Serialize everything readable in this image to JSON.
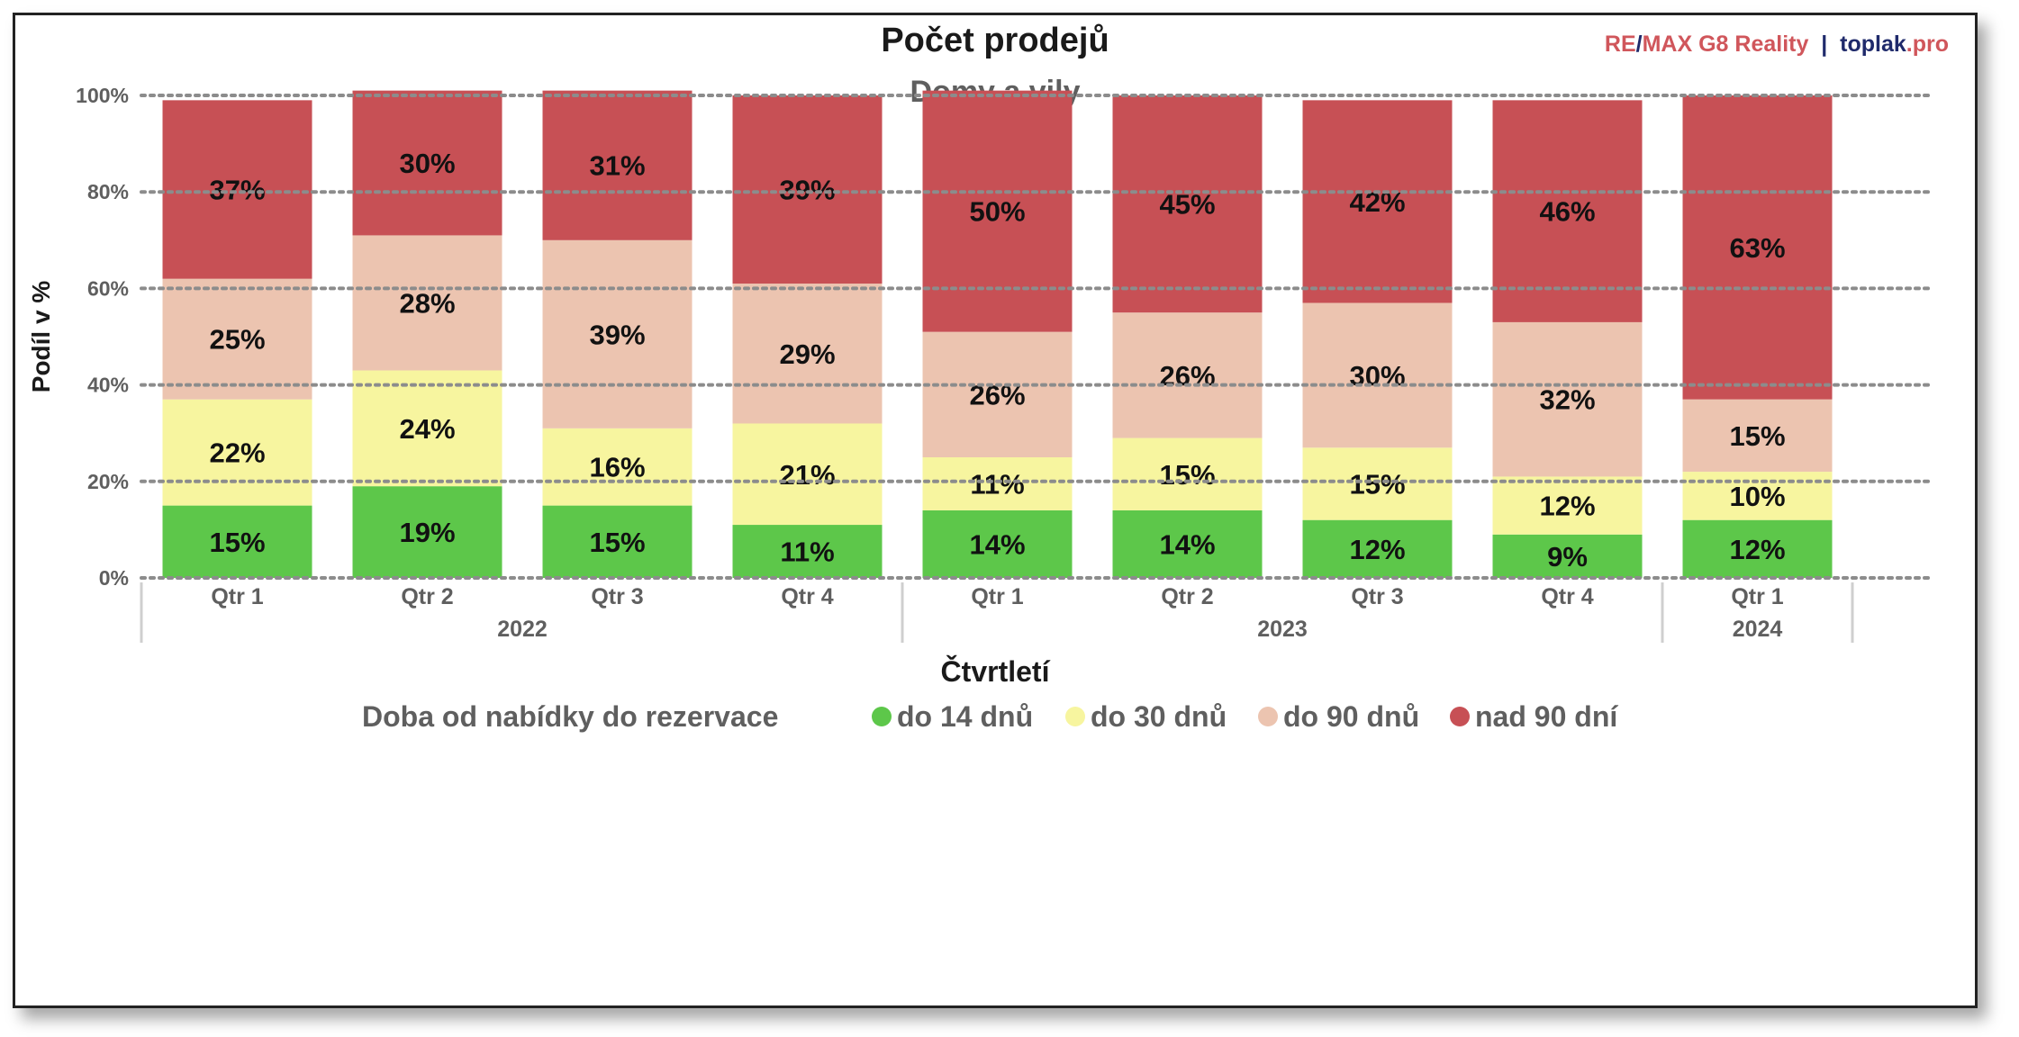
{
  "chart_data": {
    "type": "bar",
    "stacked": true,
    "title": "Počet prodejů",
    "subtitle": "Domy a vily",
    "brand": {
      "part1": "RE",
      "slash": "/",
      "part2": "MAX G8 Reality",
      "separator": "|",
      "part3": "toplak",
      "part4": ".pro"
    },
    "xlabel": "Čtvrtletí",
    "ylabel": "Podíl v %",
    "ylim": [
      0,
      100
    ],
    "yticks": [
      "0%",
      "20%",
      "40%",
      "60%",
      "80%",
      "100%"
    ],
    "grid": true,
    "categories": [
      "Qtr 1",
      "Qtr 2",
      "Qtr 3",
      "Qtr 4",
      "Qtr 1",
      "Qtr 2",
      "Qtr 3",
      "Qtr 4",
      "Qtr 1"
    ],
    "groups": [
      {
        "label": "2022",
        "count": 4
      },
      {
        "label": "2023",
        "count": 4
      },
      {
        "label": "2024",
        "count": 1
      }
    ],
    "legend_title": "Doba od nabídky do rezervace",
    "legend_position": "bottom",
    "series": [
      {
        "name": "do 14 dnů",
        "color": "#5dc74a",
        "values": [
          15,
          19,
          15,
          11,
          14,
          14,
          12,
          9,
          12
        ],
        "labels": [
          "15%",
          "19%",
          "15%",
          "11%",
          "14%",
          "14%",
          "12%",
          "9%",
          "12%"
        ]
      },
      {
        "name": "do 30 dnů",
        "color": "#f7f59f",
        "values": [
          22,
          24,
          16,
          21,
          11,
          15,
          15,
          12,
          10
        ],
        "labels": [
          "22%",
          "24%",
          "16%",
          "21%",
          "11%",
          "15%",
          "15%",
          "12%",
          "10%"
        ]
      },
      {
        "name": "do 90 dnů",
        "color": "#ecc4b0",
        "values": [
          25,
          28,
          39,
          29,
          26,
          26,
          30,
          32,
          15
        ],
        "labels": [
          "25%",
          "28%",
          "39%",
          "29%",
          "26%",
          "26%",
          "30%",
          "32%",
          "15%"
        ]
      },
      {
        "name": "nad 90 dní",
        "color": "#c75055",
        "values": [
          37,
          30,
          31,
          39,
          50,
          45,
          42,
          46,
          63
        ],
        "labels": [
          "37%",
          "30%",
          "31%",
          "39%",
          "50%",
          "45%",
          "42%",
          "46%",
          "63%"
        ]
      }
    ]
  },
  "colors": {
    "brand_red": "#d0565b",
    "brand_navy": "#1f2a6b",
    "text_dark": "#1a1a1a",
    "text_gray": "#5f5f5f",
    "grid": "#8c8c8c"
  }
}
